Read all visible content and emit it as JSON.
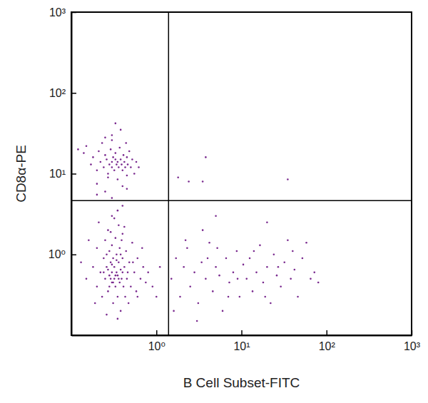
{
  "chart_data": {
    "type": "scatter",
    "x_label": "B Cell Subset-FITC",
    "y_label": "CD8α-PE",
    "log": true,
    "color": "#7a2a8f",
    "xlim": [
      0.1,
      1000
    ],
    "ylim": [
      0.1,
      1000
    ],
    "xticks": [
      {
        "value": 1,
        "label": "10⁰"
      },
      {
        "value": 10,
        "label": "10¹"
      },
      {
        "value": 100,
        "label": "10²"
      },
      {
        "value": 1000,
        "label": "10³"
      }
    ],
    "yticks": [
      {
        "value": 1,
        "label": "10⁰"
      },
      {
        "value": 10,
        "label": "10¹"
      },
      {
        "value": 100,
        "label": "10²"
      },
      {
        "value": 1000,
        "label": "10³"
      }
    ],
    "quadrant_x": 1.39,
    "quadrant_y": 4.64,
    "x": [
      0.12,
      0.14,
      0.15,
      0.17,
      0.18,
      0.2,
      0.21,
      0.22,
      0.23,
      0.24,
      0.25,
      0.26,
      0.27,
      0.28,
      0.29,
      0.3,
      0.3,
      0.31,
      0.32,
      0.33,
      0.33,
      0.34,
      0.35,
      0.36,
      0.37,
      0.38,
      0.39,
      0.4,
      0.41,
      0.42,
      0.43,
      0.45,
      0.46,
      0.48,
      0.5,
      0.52,
      0.55,
      0.58,
      0.62,
      0.3,
      0.38,
      0.33,
      0.27,
      0.35,
      0.45,
      0.2,
      0.4,
      0.3,
      0.44,
      0.25,
      0.3,
      0.25,
      0.4,
      0.35,
      0.2,
      0.45,
      0.3,
      0.15,
      0.18,
      0.2,
      0.2,
      0.22,
      0.23,
      0.24,
      0.25,
      0.25,
      0.26,
      0.27,
      0.27,
      0.28,
      0.28,
      0.29,
      0.3,
      0.3,
      0.3,
      0.31,
      0.31,
      0.32,
      0.32,
      0.33,
      0.33,
      0.34,
      0.34,
      0.35,
      0.35,
      0.36,
      0.36,
      0.37,
      0.37,
      0.38,
      0.38,
      0.39,
      0.4,
      0.4,
      0.41,
      0.42,
      0.43,
      0.44,
      0.45,
      0.46,
      0.48,
      0.5,
      0.52,
      0.55,
      0.58,
      0.6,
      0.65,
      0.7,
      0.75,
      0.13,
      0.16,
      0.19,
      0.21,
      0.26,
      0.29,
      0.32,
      0.35,
      0.39,
      0.42,
      0.47,
      0.53,
      0.6,
      0.68,
      0.8,
      0.9,
      1.1,
      1.0,
      0.24,
      0.28,
      0.33,
      0.3,
      0.36,
      0.27,
      0.31,
      0.34,
      0.38,
      0.29,
      0.26,
      0.4,
      1.5,
      1.7,
      1.9,
      2.1,
      2.3,
      2.5,
      2.8,
      3.1,
      3.4,
      3.8,
      4.2,
      4.6,
      5,
      5.5,
      6,
      6.6,
      7.2,
      8,
      8.8,
      9.5,
      10.5,
      11.5,
      12.5,
      13.5,
      15,
      16.5,
      18,
      20,
      22,
      24,
      26,
      29,
      32,
      35,
      38,
      42,
      46,
      52,
      58,
      65,
      72,
      80,
      1.6,
      2.2,
      3,
      4,
      5.2,
      7,
      9,
      14,
      19,
      27,
      40,
      20,
      5,
      3.5,
      1.8,
      2.4,
      3.5,
      3.8,
      35
    ],
    "values": [
      20,
      18,
      22,
      13,
      16,
      11,
      19,
      14,
      24,
      12,
      17,
      15,
      10,
      13,
      20,
      14,
      12,
      16,
      11,
      15,
      18,
      13,
      14,
      12,
      21,
      15,
      13,
      11,
      17,
      14,
      12,
      16,
      13,
      19,
      12,
      15,
      10,
      14,
      12,
      30,
      35,
      42,
      9,
      8.5,
      9.5,
      7.5,
      7,
      26,
      24,
      28,
      5,
      6,
      4,
      3.5,
      5.5,
      6.5,
      3,
      0.5,
      0.7,
      0.4,
      1.2,
      0.6,
      0.3,
      0.9,
      0.5,
      1.5,
      0.7,
      0.35,
      2,
      0.55,
      1.1,
      0.8,
      0.45,
      0.6,
      1.3,
      0.25,
      0.9,
      0.5,
      0.7,
      1.6,
      0.4,
      0.6,
      1.0,
      0.3,
      0.55,
      0.8,
      2.3,
      0.45,
      1.2,
      0.65,
      0.2,
      0.5,
      0.9,
      1.8,
      0.4,
      0.7,
      0.3,
      1.1,
      0.5,
      0.6,
      0.8,
      0.4,
      1.4,
      0.6,
      0.35,
      0.9,
      0.5,
      0.7,
      0.45,
      0.8,
      1.5,
      0.25,
      2.5,
      0.18,
      1.9,
      2.8,
      0.16,
      1.5,
      2.2,
      0.25,
      0.8,
      0.3,
      1.2,
      0.6,
      0.4,
      0.7,
      0.3,
      0.6,
      0.4,
      0.55,
      0.75,
      0.5,
      0.65,
      0.45,
      0.85,
      1.0,
      0.5,
      1.0,
      0.6,
      0.5,
      0.9,
      0.3,
      0.7,
      1.2,
      0.4,
      0.6,
      0.25,
      0.8,
      0.5,
      1.4,
      0.35,
      0.7,
      0.55,
      0.2,
      0.9,
      0.45,
      0.6,
      1.1,
      0.3,
      0.75,
      0.5,
      0.9,
      0.35,
      0.6,
      1.3,
      0.45,
      0.7,
      0.25,
      1.0,
      0.55,
      0.4,
      0.8,
      1.5,
      0.5,
      0.65,
      0.3,
      0.9,
      1.4,
      0.5,
      0.6,
      0.45,
      0.2,
      1.5,
      0.15,
      0.9,
      1.2,
      0.3,
      0.5,
      1.1,
      0.3,
      0.7,
      1.1,
      2.5,
      3,
      2,
      9,
      8,
      8,
      16,
      8.5
    ]
  }
}
